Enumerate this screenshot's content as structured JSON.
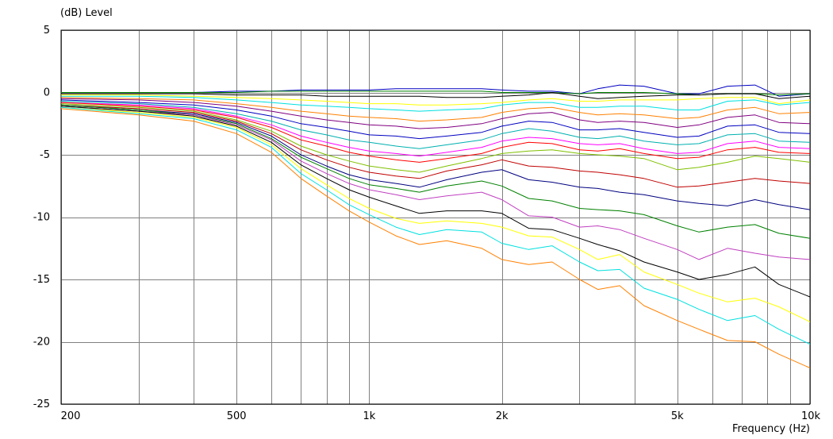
{
  "chart_data": {
    "type": "line",
    "title": "",
    "ylabel": "(dB)  Level",
    "xlabel": "Frequency  (Hz)",
    "x_scale": "log",
    "xlim": [
      200,
      10000
    ],
    "ylim": [
      -25,
      5
    ],
    "grid": true,
    "x_ticks": [
      {
        "value": 200,
        "label": "200"
      },
      {
        "value": 500,
        "label": "500"
      },
      {
        "value": 1000,
        "label": "1k"
      },
      {
        "value": 2000,
        "label": "2k"
      },
      {
        "value": 5000,
        "label": "5k"
      },
      {
        "value": 10000,
        "label": "10k"
      }
    ],
    "y_ticks": [
      {
        "value": 5,
        "label": "5"
      },
      {
        "value": 0,
        "label": "0"
      },
      {
        "value": -5,
        "label": "-5"
      },
      {
        "value": -10,
        "label": "-10"
      },
      {
        "value": -15,
        "label": "-15"
      },
      {
        "value": -20,
        "label": "-20"
      },
      {
        "value": -25,
        "label": "-25"
      }
    ],
    "x_gridlines": [
      200,
      300,
      400,
      500,
      600,
      700,
      800,
      900,
      1000,
      2000,
      3000,
      4000,
      5000,
      6000,
      7000,
      8000,
      9000,
      10000
    ],
    "y_gridlines": [
      5,
      0,
      -5,
      -10,
      -15,
      -20,
      -25
    ],
    "x": [
      200,
      300,
      400,
      500,
      600,
      700,
      800,
      900,
      1000,
      1150,
      1300,
      1500,
      1800,
      2000,
      2300,
      2600,
      3000,
      3300,
      3700,
      4200,
      5000,
      5600,
      6500,
      7500,
      8500,
      10000
    ],
    "series": [
      {
        "color": "#0000c0",
        "values": [
          0.0,
          0.0,
          0.0,
          0.1,
          0.1,
          0.2,
          0.2,
          0.2,
          0.2,
          0.3,
          0.3,
          0.3,
          0.3,
          0.2,
          0.1,
          0.1,
          -0.1,
          0.3,
          0.6,
          0.5,
          -0.1,
          -0.1,
          0.5,
          0.6,
          -0.3,
          -0.1
        ]
      },
      {
        "color": "#008000",
        "values": [
          0.0,
          0.0,
          0.0,
          0.0,
          0.1,
          0.1,
          0.1,
          0.1,
          0.1,
          0.1,
          0.1,
          0.1,
          0.1,
          0.0,
          0.0,
          0.0,
          -0.1,
          0.0,
          0.0,
          0.0,
          -0.1,
          -0.2,
          -0.1,
          -0.1,
          -0.2,
          -0.1
        ]
      },
      {
        "color": "#000000",
        "values": [
          -0.1,
          -0.1,
          -0.1,
          -0.2,
          -0.2,
          -0.2,
          -0.3,
          -0.3,
          -0.3,
          -0.3,
          -0.3,
          -0.4,
          -0.4,
          -0.3,
          -0.2,
          0.0,
          -0.3,
          -0.5,
          -0.4,
          -0.3,
          -0.2,
          -0.2,
          -0.1,
          -0.1,
          -0.5,
          -0.3
        ]
      },
      {
        "color": "#ffff00",
        "values": [
          -0.2,
          -0.2,
          -0.3,
          -0.4,
          -0.5,
          -0.6,
          -0.7,
          -0.8,
          -0.9,
          -0.9,
          -1.0,
          -1.0,
          -0.9,
          -0.8,
          -0.6,
          -0.5,
          -0.7,
          -0.7,
          -0.6,
          -0.6,
          -0.6,
          -0.5,
          -0.4,
          -0.4,
          -0.9,
          -0.6
        ]
      },
      {
        "color": "#00e0e0",
        "values": [
          -0.3,
          -0.3,
          -0.4,
          -0.6,
          -0.8,
          -1.0,
          -1.1,
          -1.2,
          -1.3,
          -1.4,
          -1.5,
          -1.4,
          -1.3,
          -1.0,
          -0.8,
          -0.8,
          -1.2,
          -1.2,
          -1.1,
          -1.1,
          -1.4,
          -1.4,
          -0.7,
          -0.6,
          -1.0,
          -0.8
        ]
      },
      {
        "color": "#ff8000",
        "values": [
          -0.4,
          -0.5,
          -0.6,
          -0.9,
          -1.2,
          -1.5,
          -1.7,
          -1.9,
          -2.0,
          -2.1,
          -2.3,
          -2.2,
          -2.0,
          -1.6,
          -1.3,
          -1.2,
          -1.6,
          -1.8,
          -1.7,
          -1.8,
          -2.1,
          -2.0,
          -1.4,
          -1.2,
          -1.7,
          -1.6
        ]
      },
      {
        "color": "#800080",
        "values": [
          -0.5,
          -0.6,
          -0.8,
          -1.1,
          -1.5,
          -1.9,
          -2.2,
          -2.4,
          -2.6,
          -2.7,
          -2.9,
          -2.8,
          -2.5,
          -2.1,
          -1.7,
          -1.6,
          -2.2,
          -2.4,
          -2.3,
          -2.4,
          -2.8,
          -2.6,
          -2.0,
          -1.8,
          -2.4,
          -2.5
        ]
      },
      {
        "color": "#0000c0",
        "values": [
          -0.6,
          -0.8,
          -1.0,
          -1.4,
          -1.9,
          -2.5,
          -2.8,
          -3.1,
          -3.4,
          -3.5,
          -3.7,
          -3.5,
          -3.2,
          -2.7,
          -2.3,
          -2.4,
          -3.0,
          -3.0,
          -2.9,
          -3.2,
          -3.6,
          -3.5,
          -2.7,
          -2.6,
          -3.2,
          -3.3
        ]
      },
      {
        "color": "#00b0b0",
        "values": [
          -0.7,
          -0.9,
          -1.2,
          -1.7,
          -2.3,
          -3.0,
          -3.4,
          -3.8,
          -4.0,
          -4.3,
          -4.5,
          -4.2,
          -3.8,
          -3.3,
          -2.9,
          -3.1,
          -3.6,
          -3.7,
          -3.5,
          -3.9,
          -4.2,
          -4.1,
          -3.4,
          -3.3,
          -3.9,
          -4.0
        ]
      },
      {
        "color": "#ff00ff",
        "values": [
          -0.8,
          -1.0,
          -1.3,
          -1.9,
          -2.6,
          -3.5,
          -4.0,
          -4.4,
          -4.7,
          -4.9,
          -5.1,
          -4.8,
          -4.4,
          -3.9,
          -3.6,
          -3.7,
          -4.1,
          -4.2,
          -4.1,
          -4.5,
          -4.9,
          -4.8,
          -4.1,
          -3.9,
          -4.4,
          -4.5
        ]
      },
      {
        "color": "#ff0000",
        "values": [
          -0.8,
          -1.1,
          -1.4,
          -2.0,
          -2.8,
          -3.8,
          -4.3,
          -4.8,
          -5.1,
          -5.4,
          -5.6,
          -5.3,
          -4.9,
          -4.4,
          -4.0,
          -4.1,
          -4.6,
          -4.7,
          -4.5,
          -4.9,
          -5.3,
          -5.2,
          -4.6,
          -4.4,
          -4.8,
          -4.9
        ]
      },
      {
        "color": "#80c000",
        "values": [
          -0.9,
          -1.2,
          -1.5,
          -2.2,
          -3.1,
          -4.3,
          -5.0,
          -5.5,
          -5.9,
          -6.2,
          -6.4,
          -5.9,
          -5.3,
          -4.9,
          -4.7,
          -4.6,
          -4.9,
          -5.0,
          -5.1,
          -5.3,
          -6.2,
          -6.0,
          -5.6,
          -5.1,
          -5.3,
          -5.6
        ]
      },
      {
        "color": "#c00000",
        "values": [
          -1.0,
          -1.3,
          -1.6,
          -2.3,
          -3.3,
          -4.6,
          -5.4,
          -6.0,
          -6.4,
          -6.7,
          -6.9,
          -6.3,
          -5.8,
          -5.4,
          -5.9,
          -6.0,
          -6.3,
          -6.4,
          -6.6,
          -6.9,
          -7.6,
          -7.5,
          -7.2,
          -6.9,
          -7.1,
          -7.3
        ]
      },
      {
        "color": "#000080",
        "values": [
          -1.0,
          -1.4,
          -1.7,
          -2.4,
          -3.5,
          -5.0,
          -5.9,
          -6.6,
          -7.0,
          -7.3,
          -7.6,
          -7.0,
          -6.4,
          -6.2,
          -7.0,
          -7.2,
          -7.6,
          -7.7,
          -8.0,
          -8.2,
          -8.7,
          -8.9,
          -9.1,
          -8.6,
          -9.0,
          -9.4
        ]
      },
      {
        "color": "#008000",
        "values": [
          -1.0,
          -1.4,
          -1.8,
          -2.5,
          -3.7,
          -5.2,
          -6.1,
          -6.9,
          -7.4,
          -7.7,
          -8.0,
          -7.5,
          -7.1,
          -7.5,
          -8.5,
          -8.7,
          -9.3,
          -9.4,
          -9.5,
          -9.8,
          -10.7,
          -11.2,
          -10.8,
          -10.6,
          -11.3,
          -11.7
        ]
      },
      {
        "color": "#c040c0",
        "values": [
          -1.1,
          -1.5,
          -1.8,
          -2.6,
          -3.8,
          -5.5,
          -6.5,
          -7.3,
          -7.8,
          -8.2,
          -8.6,
          -8.3,
          -8.0,
          -8.6,
          -9.9,
          -10.0,
          -10.8,
          -10.7,
          -11.0,
          -11.7,
          -12.6,
          -13.4,
          -12.5,
          -12.9,
          -13.2,
          -13.4
        ]
      },
      {
        "color": "#000000",
        "values": [
          -1.1,
          -1.5,
          -1.9,
          -2.7,
          -4.0,
          -5.8,
          -6.9,
          -7.8,
          -8.4,
          -9.1,
          -9.7,
          -9.5,
          -9.5,
          -9.7,
          -10.9,
          -11.0,
          -11.7,
          -12.2,
          -12.7,
          -13.6,
          -14.4,
          -15.0,
          -14.6,
          -14.0,
          -15.4,
          -16.4
        ]
      },
      {
        "color": "#ffff00",
        "values": [
          -1.2,
          -1.6,
          -2.0,
          -2.8,
          -4.2,
          -6.1,
          -7.4,
          -8.5,
          -9.3,
          -10.1,
          -10.5,
          -10.3,
          -10.5,
          -10.8,
          -11.5,
          -11.6,
          -12.6,
          -13.4,
          -13.0,
          -14.4,
          -15.4,
          -16.1,
          -16.8,
          -16.5,
          -17.2,
          -18.4
        ]
      },
      {
        "color": "#00e0e0",
        "values": [
          -1.2,
          -1.7,
          -2.1,
          -3.0,
          -4.4,
          -6.5,
          -7.8,
          -9.0,
          -9.8,
          -10.8,
          -11.4,
          -11.0,
          -11.2,
          -12.1,
          -12.6,
          -12.3,
          -13.6,
          -14.3,
          -14.2,
          -15.7,
          -16.6,
          -17.4,
          -18.3,
          -17.9,
          -19.0,
          -20.2
        ]
      },
      {
        "color": "#ff8000",
        "values": [
          -1.3,
          -1.8,
          -2.3,
          -3.3,
          -4.8,
          -6.9,
          -8.3,
          -9.5,
          -10.4,
          -11.5,
          -12.2,
          -11.9,
          -12.5,
          -13.4,
          -13.8,
          -13.6,
          -15.0,
          -15.8,
          -15.5,
          -17.1,
          -18.3,
          -19.0,
          -19.9,
          -20.0,
          -21.0,
          -22.1
        ]
      }
    ]
  }
}
